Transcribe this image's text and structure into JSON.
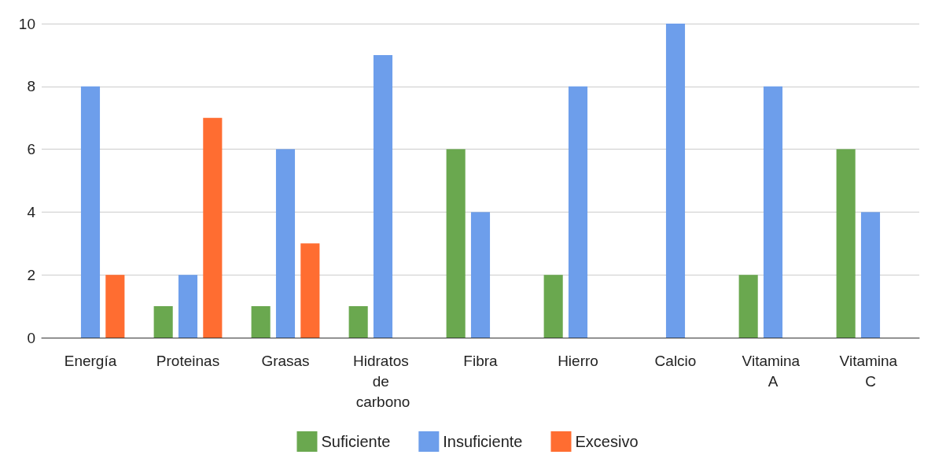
{
  "chart_data": {
    "type": "bar",
    "categories": [
      "Energía",
      "Proteinas",
      "Grasas",
      "Hidratos de carbono",
      "Fibra",
      "Hierro",
      "Calcio",
      "Vitamina A",
      "Vitamina C"
    ],
    "series": [
      {
        "name": "Suficiente",
        "color": "#6aa84f",
        "values": [
          0,
          1,
          1,
          1,
          6,
          2,
          0,
          2,
          6
        ]
      },
      {
        "name": "Insuficiente",
        "color": "#6d9eeb",
        "values": [
          8,
          2,
          6,
          9,
          4,
          8,
          10,
          8,
          4
        ]
      },
      {
        "name": "Excesivo",
        "color": "#ff6d31",
        "values": [
          2,
          7,
          3,
          0,
          0,
          0,
          0,
          0,
          0
        ]
      }
    ],
    "ylim": [
      0,
      10
    ],
    "yticks": [
      0,
      2,
      4,
      6,
      8,
      10
    ],
    "grid": "y",
    "legend": "bottom"
  }
}
